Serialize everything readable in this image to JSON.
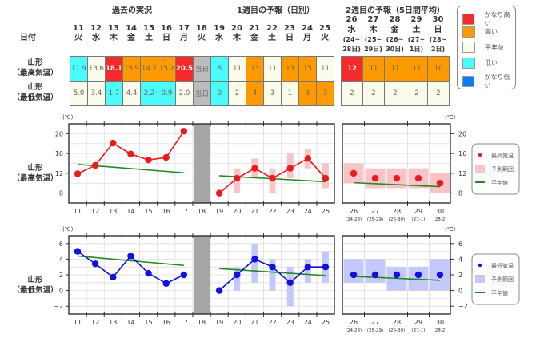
{
  "headers": {
    "past": "過去の実況",
    "week1": "1週目の予報（日別）",
    "week2": "2週目の予報（5日間平均）",
    "date_label": "日付"
  },
  "row_labels": {
    "max": [
      "山形",
      "（最高気温）"
    ],
    "min": [
      "山形",
      "（最低気温）"
    ]
  },
  "colors": {
    "very_high": "#f52a2a",
    "high": "#ff9900",
    "normal": "#fbfbec",
    "low": "#4cfcfc",
    "very_low": "#0a7cff",
    "today": "#bcbcbc",
    "max_series": "#e81c1c",
    "max_range": "#f9c4c8",
    "min_series": "#1010e0",
    "min_range": "#c4c8fa",
    "normal_line": "#1f8a1f"
  },
  "days": [
    {
      "date": "11",
      "dow": "火"
    },
    {
      "date": "12",
      "dow": "水"
    },
    {
      "date": "13",
      "dow": "木"
    },
    {
      "date": "14",
      "dow": "金"
    },
    {
      "date": "15",
      "dow": "土"
    },
    {
      "date": "16",
      "dow": "日"
    },
    {
      "date": "17",
      "dow": "月"
    },
    {
      "date": "18",
      "dow": "火"
    },
    {
      "date": "19",
      "dow": "水"
    },
    {
      "date": "20",
      "dow": "木"
    },
    {
      "date": "21",
      "dow": "金"
    },
    {
      "date": "22",
      "dow": "土"
    },
    {
      "date": "23",
      "dow": "日"
    },
    {
      "date": "24",
      "dow": "月"
    },
    {
      "date": "25",
      "dow": "火"
    }
  ],
  "week2_days": [
    {
      "date": "26",
      "dow": "水",
      "range1": "(24~",
      "range2": "28日)"
    },
    {
      "date": "27",
      "dow": "木",
      "range1": "(25~",
      "range2": "29日)"
    },
    {
      "date": "28",
      "dow": "金",
      "range1": "(26~",
      "range2": "30日)"
    },
    {
      "date": "29",
      "dow": "土",
      "range1": "(27~",
      "range2": "1日)"
    },
    {
      "date": "30",
      "dow": "日",
      "range1": "(28~",
      "range2": "2日)"
    }
  ],
  "max_row": [
    {
      "v": "11.9",
      "c": "low"
    },
    {
      "v": "13.6",
      "c": "normal"
    },
    {
      "v": "18.1",
      "c": "very_high"
    },
    {
      "v": "15.9",
      "c": "high"
    },
    {
      "v": "14.7",
      "c": "high"
    },
    {
      "v": "15.2",
      "c": "high"
    },
    {
      "v": "20.5",
      "c": "very_high"
    },
    {
      "v": "当日",
      "c": "today"
    },
    {
      "v": "8",
      "c": "low"
    },
    {
      "v": "11",
      "c": "normal"
    },
    {
      "v": "13",
      "c": "high"
    },
    {
      "v": "11",
      "c": "normal"
    },
    {
      "v": "13",
      "c": "high"
    },
    {
      "v": "15",
      "c": "high"
    },
    {
      "v": "11",
      "c": "normal"
    }
  ],
  "min_row": [
    {
      "v": "5.0",
      "c": "normal"
    },
    {
      "v": "3.4",
      "c": "normal"
    },
    {
      "v": "1.7",
      "c": "low"
    },
    {
      "v": "4.4",
      "c": "normal"
    },
    {
      "v": "2.2",
      "c": "low"
    },
    {
      "v": "0.9",
      "c": "low"
    },
    {
      "v": "2.0",
      "c": "normal"
    },
    {
      "v": "当日",
      "c": "today"
    },
    {
      "v": "0",
      "c": "low"
    },
    {
      "v": "2",
      "c": "normal"
    },
    {
      "v": "4",
      "c": "high"
    },
    {
      "v": "3",
      "c": "normal"
    },
    {
      "v": "1",
      "c": "normal"
    },
    {
      "v": "3",
      "c": "high"
    },
    {
      "v": "3",
      "c": "high"
    }
  ],
  "week2_max": [
    {
      "v": "12",
      "c": "very_high"
    },
    {
      "v": "11",
      "c": "high"
    },
    {
      "v": "11",
      "c": "high"
    },
    {
      "v": "11",
      "c": "high"
    },
    {
      "v": "10",
      "c": "high"
    }
  ],
  "week2_min": [
    {
      "v": "2",
      "c": "normal"
    },
    {
      "v": "2",
      "c": "normal"
    },
    {
      "v": "2",
      "c": "normal"
    },
    {
      "v": "2",
      "c": "normal"
    },
    {
      "v": "2",
      "c": "normal"
    }
  ],
  "legend": [
    {
      "label": "かなり高い",
      "c": "very_high"
    },
    {
      "label": "高い",
      "c": "high"
    },
    {
      "label": "平年並",
      "c": "normal"
    },
    {
      "label": "低い",
      "c": "low"
    },
    {
      "label": "かなり低い",
      "c": "very_low"
    }
  ],
  "chart_data": [
    {
      "type": "line",
      "title": "山形（最高気温）",
      "unit": "(℃)",
      "ylim": [
        6,
        22
      ],
      "yticks": [
        8,
        12,
        16,
        20
      ],
      "x": [
        "11",
        "12",
        "13",
        "14",
        "15",
        "16",
        "17",
        "18",
        "19",
        "20",
        "21",
        "22",
        "23",
        "24",
        "25"
      ],
      "gray_day": "18",
      "actual": [
        11.9,
        13.6,
        18.1,
        15.9,
        14.7,
        15.2,
        20.5
      ],
      "actual_normal": [
        13.8,
        12.1
      ],
      "forecast": [
        8,
        11,
        13,
        11,
        13,
        15,
        11
      ],
      "forecast_range": [
        null,
        [
          8,
          13
        ],
        [
          11,
          15
        ],
        [
          8,
          13
        ],
        [
          11,
          16
        ],
        [
          13,
          17
        ],
        [
          9,
          14
        ]
      ],
      "forecast_normal": [
        11.5,
        10.3
      ],
      "week2_x": [
        "26",
        "27",
        "28",
        "29",
        "30"
      ],
      "week2_sub": [
        "(24-28)",
        "(25-29)",
        "(26-30)",
        "(27-1)",
        "(28-2)"
      ],
      "week2": [
        12,
        11,
        11,
        11,
        10
      ],
      "week2_range": [
        [
          10,
          14
        ],
        [
          9,
          13
        ],
        [
          9,
          13
        ],
        [
          9,
          13
        ],
        [
          8,
          12
        ]
      ],
      "week2_normal": [
        10.1,
        9.3
      ],
      "legend": [
        "最高気温",
        "予測範囲",
        "平年値"
      ],
      "series_color": "max_series",
      "range_color": "max_range"
    },
    {
      "type": "line",
      "title": "山形（最低気温）",
      "unit": "(℃)",
      "ylim": [
        -3,
        7
      ],
      "yticks": [
        -2,
        0,
        2,
        4,
        6
      ],
      "x": [
        "11",
        "12",
        "13",
        "14",
        "15",
        "16",
        "17",
        "18",
        "19",
        "20",
        "21",
        "22",
        "23",
        "24",
        "25"
      ],
      "gray_day": "18",
      "actual": [
        5.0,
        3.4,
        1.7,
        4.4,
        2.2,
        0.9,
        2.0
      ],
      "actual_normal": [
        4.4,
        3.2
      ],
      "forecast": [
        0,
        2,
        4,
        3,
        1,
        3,
        3
      ],
      "forecast_range": [
        null,
        [
          0,
          3
        ],
        [
          1,
          6
        ],
        [
          0,
          4
        ],
        [
          -2,
          3
        ],
        [
          1,
          4
        ],
        [
          1,
          5
        ]
      ],
      "forecast_normal": [
        2.8,
        1.9
      ],
      "week2_x": [
        "26",
        "27",
        "28",
        "29",
        "30"
      ],
      "week2_sub": [
        "(24-28)",
        "(25-29)",
        "(26-30)",
        "(27-1)",
        "(28-2)"
      ],
      "week2": [
        2,
        2,
        2,
        2,
        2
      ],
      "week2_range": [
        [
          1,
          4
        ],
        [
          1,
          4
        ],
        [
          0,
          3
        ],
        [
          0,
          3
        ],
        [
          0,
          4
        ]
      ],
      "week2_normal": [
        1.8,
        1.3
      ],
      "legend": [
        "最低気温",
        "予測範囲",
        "平年値"
      ],
      "series_color": "min_series",
      "range_color": "min_range"
    }
  ]
}
